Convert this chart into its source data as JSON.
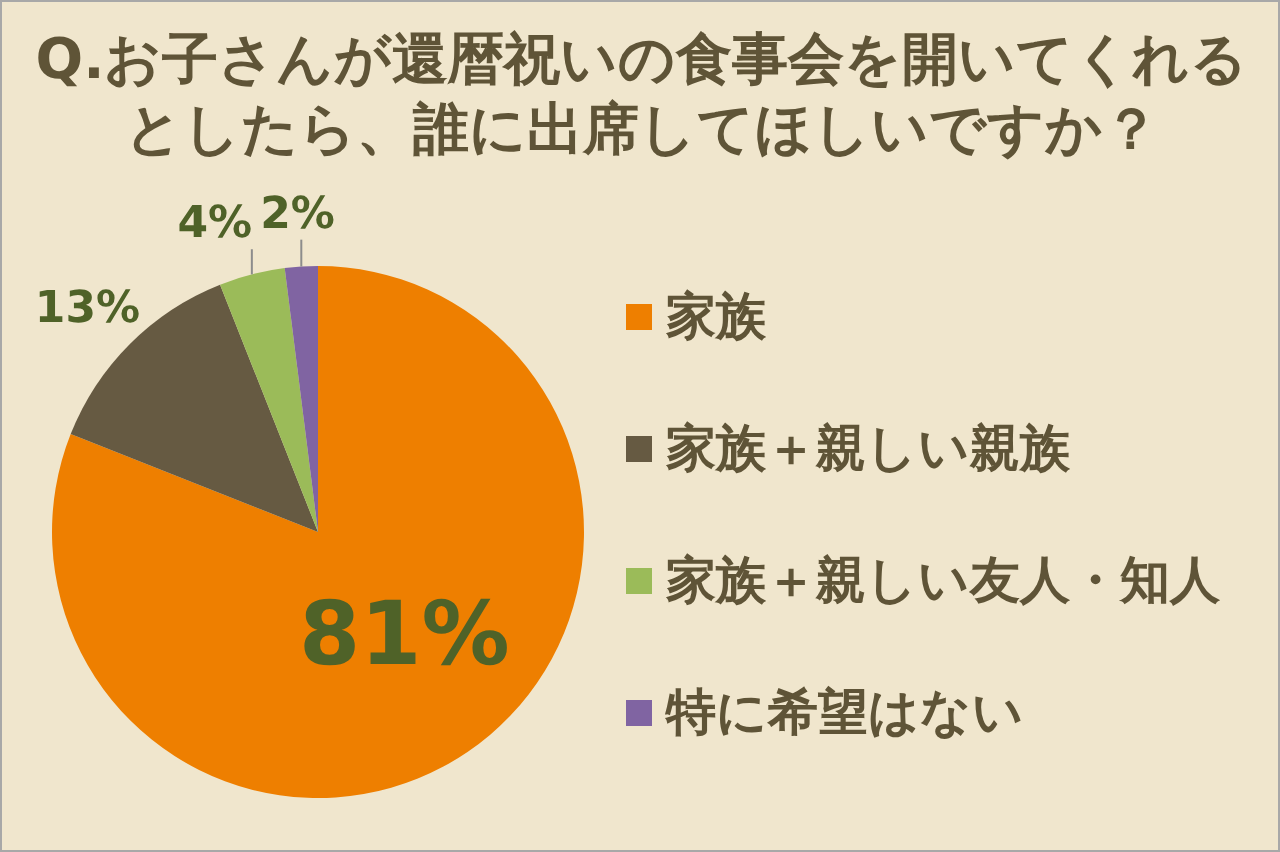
{
  "chart_data": {
    "type": "pie",
    "title": "Q.お子さんが還暦祝いの食事会を開いてくれるとしたら、誰に出席してほしいですか？",
    "categories": [
      "家族",
      "家族＋親しい親族",
      "家族＋親しい友人・知人",
      "特に希望はない"
    ],
    "values": [
      81,
      13,
      4,
      2
    ],
    "colors": [
      "#ee7f00",
      "#665a42",
      "#9bbb59",
      "#8064a2"
    ],
    "value_labels": [
      "81%",
      "13%",
      "4%",
      "2%"
    ],
    "legend": "right"
  }
}
